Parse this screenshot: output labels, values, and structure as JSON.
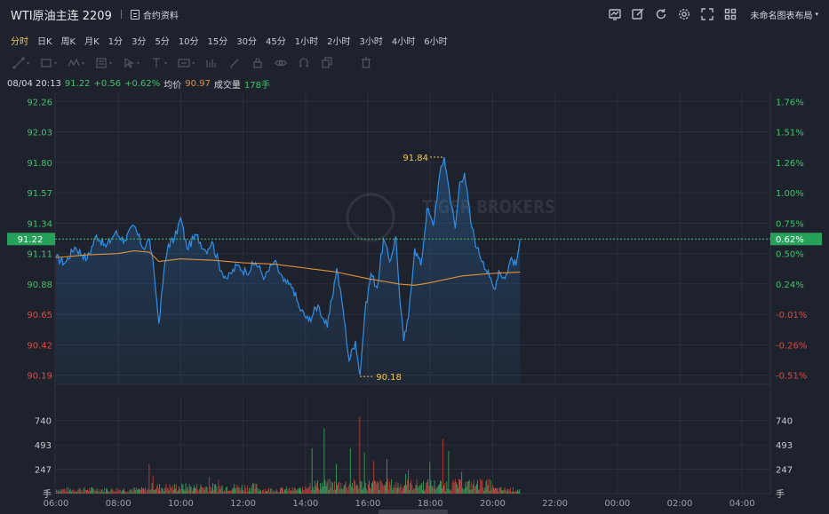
{
  "header": {
    "symbol_title": "WTI原油主连 2209",
    "contract_label": "合约资料",
    "layout_label": "未命名图表布局",
    "tools": [
      "chart-settings-icon",
      "edit-icon",
      "refresh-icon",
      "gear-icon",
      "fullscreen-icon",
      "grid-layout-icon"
    ]
  },
  "periods": [
    {
      "label": "分时",
      "active": true
    },
    {
      "label": "日K",
      "active": false
    },
    {
      "label": "周K",
      "active": false
    },
    {
      "label": "月K",
      "active": false
    },
    {
      "label": "1分",
      "active": false
    },
    {
      "label": "3分",
      "active": false
    },
    {
      "label": "5分",
      "active": false
    },
    {
      "label": "10分",
      "active": false
    },
    {
      "label": "15分",
      "active": false
    },
    {
      "label": "30分",
      "active": false
    },
    {
      "label": "45分",
      "active": false
    },
    {
      "label": "1小时",
      "active": false
    },
    {
      "label": "2小时",
      "active": false
    },
    {
      "label": "3小时",
      "active": false
    },
    {
      "label": "4小时",
      "active": false
    },
    {
      "label": "6小时",
      "active": false
    }
  ],
  "draw_tools": [
    "line-tool-icon",
    "rect-tool-icon",
    "pattern-tool-icon",
    "measure-tool-icon",
    "cursor-tool-icon",
    "text-tool-icon",
    "image-tool-icon",
    "indicator-tool-icon",
    "pen-icon",
    "lock-icon",
    "eye-icon",
    "magnet-icon",
    "copy-icon",
    "trash-icon"
  ],
  "info": {
    "datetime": "08/04 20:13",
    "price": "91.22",
    "change": "+0.56",
    "change_pct": "+0.62%",
    "avg_label": "均价",
    "avg_value": "90.97",
    "volume_label": "成交量",
    "volume_value": "178手"
  },
  "colors": {
    "background": "#1e222d",
    "price_line": "#2f8fe6",
    "avg_line": "#e0913a",
    "up": "#3fc26a",
    "down": "#e4473c",
    "highlight": "#f2c94c"
  },
  "chart_data": {
    "type": "line",
    "watermark": "TIGER BROKERS",
    "y_ticks_left": [
      "92.26",
      "92.03",
      "91.80",
      "91.57",
      "91.34",
      "91.11",
      "90.88",
      "90.65",
      "90.42",
      "90.19"
    ],
    "y_ticks_right": [
      "1.76%",
      "1.51%",
      "1.26%",
      "1.00%",
      "0.75%",
      "0.50%",
      "0.24%",
      "-0.01%",
      "-0.26%",
      "-0.51%"
    ],
    "ylim": [
      90.12,
      92.33
    ],
    "x_ticks": [
      "06:00",
      "08:00",
      "10:00",
      "12:00",
      "14:00",
      "16:00",
      "18:00",
      "20:00",
      "22:00",
      "00:00",
      "02:00",
      "04:00"
    ],
    "current_price_label": "91.22",
    "current_pct_label": "0.62%",
    "high_label": "91.84",
    "low_label": "90.18",
    "price_keypoints": [
      {
        "t": 0.0,
        "v": 91.08
      },
      {
        "t": 0.3,
        "v": 91.04
      },
      {
        "t": 0.6,
        "v": 91.16
      },
      {
        "t": 1.0,
        "v": 91.07
      },
      {
        "t": 1.3,
        "v": 91.25
      },
      {
        "t": 1.6,
        "v": 91.16
      },
      {
        "t": 1.9,
        "v": 91.27
      },
      {
        "t": 2.2,
        "v": 91.21
      },
      {
        "t": 2.5,
        "v": 91.32
      },
      {
        "t": 2.8,
        "v": 91.15
      },
      {
        "t": 3.0,
        "v": 91.22
      },
      {
        "t": 3.15,
        "v": 90.95
      },
      {
        "t": 3.3,
        "v": 90.58
      },
      {
        "t": 3.45,
        "v": 90.95
      },
      {
        "t": 3.6,
        "v": 91.18
      },
      {
        "t": 3.8,
        "v": 91.22
      },
      {
        "t": 4.0,
        "v": 91.38
      },
      {
        "t": 4.2,
        "v": 91.15
      },
      {
        "t": 4.5,
        "v": 91.25
      },
      {
        "t": 4.8,
        "v": 91.13
      },
      {
        "t": 5.0,
        "v": 91.2
      },
      {
        "t": 5.3,
        "v": 90.98
      },
      {
        "t": 5.5,
        "v": 90.92
      },
      {
        "t": 5.8,
        "v": 91.02
      },
      {
        "t": 6.1,
        "v": 90.97
      },
      {
        "t": 6.4,
        "v": 91.04
      },
      {
        "t": 6.7,
        "v": 90.93
      },
      {
        "t": 7.0,
        "v": 91.05
      },
      {
        "t": 7.3,
        "v": 90.9
      },
      {
        "t": 7.6,
        "v": 90.85
      },
      {
        "t": 7.8,
        "v": 90.7
      },
      {
        "t": 8.1,
        "v": 90.6
      },
      {
        "t": 8.4,
        "v": 90.72
      },
      {
        "t": 8.7,
        "v": 90.55
      },
      {
        "t": 9.0,
        "v": 91.0
      },
      {
        "t": 9.2,
        "v": 90.7
      },
      {
        "t": 9.4,
        "v": 90.3
      },
      {
        "t": 9.6,
        "v": 90.45
      },
      {
        "t": 9.75,
        "v": 90.19
      },
      {
        "t": 9.9,
        "v": 90.65
      },
      {
        "t": 10.1,
        "v": 90.96
      },
      {
        "t": 10.3,
        "v": 90.85
      },
      {
        "t": 10.5,
        "v": 91.22
      },
      {
        "t": 10.7,
        "v": 91.05
      },
      {
        "t": 10.9,
        "v": 91.24
      },
      {
        "t": 11.0,
        "v": 90.85
      },
      {
        "t": 11.15,
        "v": 90.45
      },
      {
        "t": 11.3,
        "v": 90.62
      },
      {
        "t": 11.5,
        "v": 91.15
      },
      {
        "t": 11.7,
        "v": 91.02
      },
      {
        "t": 11.9,
        "v": 91.45
      },
      {
        "t": 12.1,
        "v": 91.32
      },
      {
        "t": 12.3,
        "v": 91.7
      },
      {
        "t": 12.45,
        "v": 91.84
      },
      {
        "t": 12.6,
        "v": 91.6
      },
      {
        "t": 12.8,
        "v": 91.3
      },
      {
        "t": 12.95,
        "v": 91.65
      },
      {
        "t": 13.1,
        "v": 91.72
      },
      {
        "t": 13.3,
        "v": 91.35
      },
      {
        "t": 13.5,
        "v": 91.15
      },
      {
        "t": 13.7,
        "v": 91.05
      },
      {
        "t": 13.9,
        "v": 90.93
      },
      {
        "t": 14.05,
        "v": 90.84
      },
      {
        "t": 14.2,
        "v": 90.98
      },
      {
        "t": 14.4,
        "v": 90.92
      },
      {
        "t": 14.6,
        "v": 91.08
      },
      {
        "t": 14.75,
        "v": 91.02
      },
      {
        "t": 14.88,
        "v": 91.22
      }
    ],
    "avg_keypoints": [
      {
        "t": 0.0,
        "v": 91.08
      },
      {
        "t": 1.0,
        "v": 91.1
      },
      {
        "t": 2.0,
        "v": 91.11
      },
      {
        "t": 2.5,
        "v": 91.13
      },
      {
        "t": 3.0,
        "v": 91.12
      },
      {
        "t": 3.3,
        "v": 91.05
      },
      {
        "t": 4.0,
        "v": 91.07
      },
      {
        "t": 5.0,
        "v": 91.06
      },
      {
        "t": 6.0,
        "v": 91.04
      },
      {
        "t": 7.0,
        "v": 91.03
      },
      {
        "t": 8.0,
        "v": 91.0
      },
      {
        "t": 9.0,
        "v": 90.97
      },
      {
        "t": 10.0,
        "v": 90.92
      },
      {
        "t": 11.0,
        "v": 90.88
      },
      {
        "t": 11.5,
        "v": 90.87
      },
      {
        "t": 12.0,
        "v": 90.89
      },
      {
        "t": 13.0,
        "v": 90.94
      },
      {
        "t": 14.0,
        "v": 90.96
      },
      {
        "t": 14.88,
        "v": 90.97
      }
    ],
    "volume": {
      "y_ticks": [
        "740",
        "493",
        "247"
      ],
      "unit_label": "手",
      "ylim": [
        0,
        980
      ],
      "typical_level": 40,
      "spikes": [
        {
          "t": 3.0,
          "v": 300
        },
        {
          "t": 3.1,
          "v": 180
        },
        {
          "t": 4.9,
          "v": 170
        },
        {
          "t": 5.2,
          "v": 140
        },
        {
          "t": 8.2,
          "v": 460
        },
        {
          "t": 8.6,
          "v": 660
        },
        {
          "t": 9.0,
          "v": 300
        },
        {
          "t": 9.45,
          "v": 460
        },
        {
          "t": 9.75,
          "v": 780
        },
        {
          "t": 9.9,
          "v": 420
        },
        {
          "t": 10.2,
          "v": 330
        },
        {
          "t": 10.6,
          "v": 350
        },
        {
          "t": 11.2,
          "v": 200
        },
        {
          "t": 11.3,
          "v": 240
        },
        {
          "t": 12.0,
          "v": 320
        },
        {
          "t": 12.4,
          "v": 550
        },
        {
          "t": 12.6,
          "v": 430
        },
        {
          "t": 13.0,
          "v": 220
        },
        {
          "t": 13.6,
          "v": 150
        }
      ]
    }
  }
}
